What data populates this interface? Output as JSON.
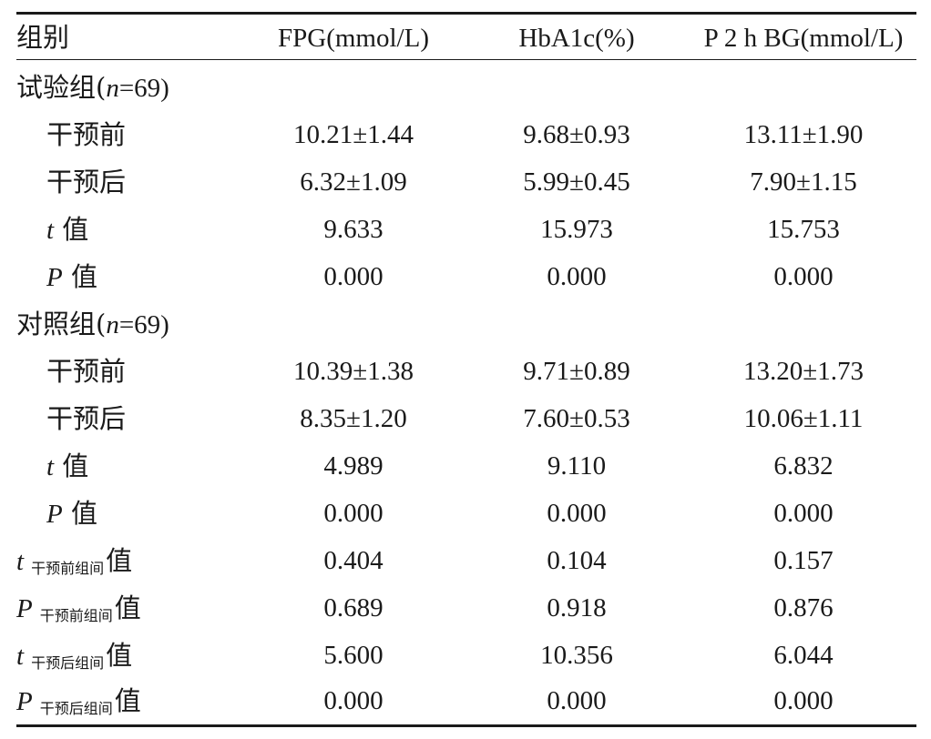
{
  "header": {
    "group": "组别",
    "fpg": "FPG(mmol/L)",
    "hba1c": "HbA1c(%)",
    "p2hbg": "P 2 h BG(mmol/L)"
  },
  "exp_group": {
    "label_pre": "试验组(",
    "n_var": "n",
    "n_val": "=69)",
    "rows": [
      {
        "label": "干预前",
        "fpg": "10.21±1.44",
        "hba1c": "9.68±0.93",
        "p2hbg": "13.11±1.90"
      },
      {
        "label": "干预后",
        "fpg": "6.32±1.09",
        "hba1c": "5.99±0.45",
        "p2hbg": "7.90±1.15"
      },
      {
        "var": "t",
        "label": "值",
        "fpg": "9.633",
        "hba1c": "15.973",
        "p2hbg": "15.753"
      },
      {
        "var": "P",
        "label": "值",
        "fpg": "0.000",
        "hba1c": "0.000",
        "p2hbg": "0.000"
      }
    ]
  },
  "ctrl_group": {
    "label_pre": "对照组(",
    "n_var": "n",
    "n_val": "=69)",
    "rows": [
      {
        "label": "干预前",
        "fpg": "10.39±1.38",
        "hba1c": "9.71±0.89",
        "p2hbg": "13.20±1.73"
      },
      {
        "label": "干预后",
        "fpg": "8.35±1.20",
        "hba1c": "7.60±0.53",
        "p2hbg": "10.06±1.11"
      },
      {
        "var": "t",
        "label": "值",
        "fpg": "4.989",
        "hba1c": "9.110",
        "p2hbg": "6.832"
      },
      {
        "var": "P",
        "label": "值",
        "fpg": "0.000",
        "hba1c": "0.000",
        "p2hbg": "0.000"
      }
    ]
  },
  "between": [
    {
      "var": "t",
      "sub": "干预前组间",
      "label": "值",
      "fpg": "0.404",
      "hba1c": "0.104",
      "p2hbg": "0.157"
    },
    {
      "var": "P",
      "sub": "干预前组间",
      "label": "值",
      "fpg": "0.689",
      "hba1c": "0.918",
      "p2hbg": "0.876"
    },
    {
      "var": "t",
      "sub": "干预后组间",
      "label": "值",
      "fpg": "5.600",
      "hba1c": "10.356",
      "p2hbg": "6.044"
    },
    {
      "var": "P",
      "sub": "干预后组间",
      "label": "值",
      "fpg": "0.000",
      "hba1c": "0.000",
      "p2hbg": "0.000"
    }
  ]
}
